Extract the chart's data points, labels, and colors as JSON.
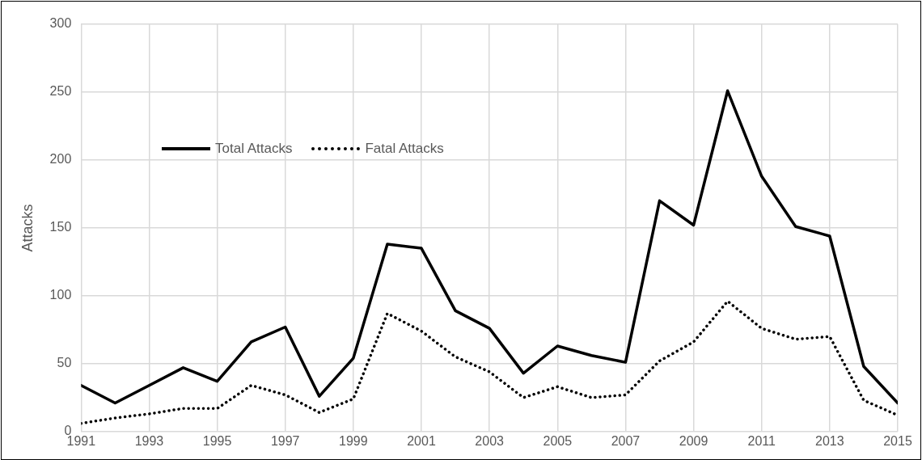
{
  "chart_data": {
    "type": "line",
    "ylabel": "Attacks",
    "x": [
      1991,
      1992,
      1993,
      1994,
      1995,
      1996,
      1997,
      1998,
      1999,
      2000,
      2001,
      2002,
      2003,
      2004,
      2005,
      2006,
      2007,
      2008,
      2009,
      2010,
      2011,
      2012,
      2013,
      2014,
      2015
    ],
    "series": [
      {
        "name": "Total Attacks",
        "color": "#000000",
        "line_style": "solid",
        "values": [
          34,
          21,
          34,
          47,
          37,
          66,
          77,
          26,
          54,
          138,
          135,
          89,
          76,
          43,
          63,
          56,
          51,
          170,
          152,
          251,
          188,
          151,
          144,
          48,
          21
        ]
      },
      {
        "name": "Fatal Attacks",
        "color": "#000000",
        "line_style": "dotted",
        "values": [
          6,
          10,
          13,
          17,
          17,
          34,
          27,
          14,
          24,
          87,
          74,
          55,
          44,
          25,
          33,
          25,
          27,
          52,
          66,
          96,
          76,
          68,
          70,
          23,
          12
        ]
      }
    ],
    "xlim": [
      1991,
      2015
    ],
    "xticks": [
      1991,
      1993,
      1995,
      1997,
      1999,
      2001,
      2003,
      2005,
      2007,
      2009,
      2011,
      2013,
      2015
    ],
    "ylim": [
      0,
      300
    ],
    "yticks": [
      0,
      50,
      100,
      150,
      200,
      250,
      300
    ],
    "grid": true,
    "legend": "left",
    "marker": "none"
  }
}
